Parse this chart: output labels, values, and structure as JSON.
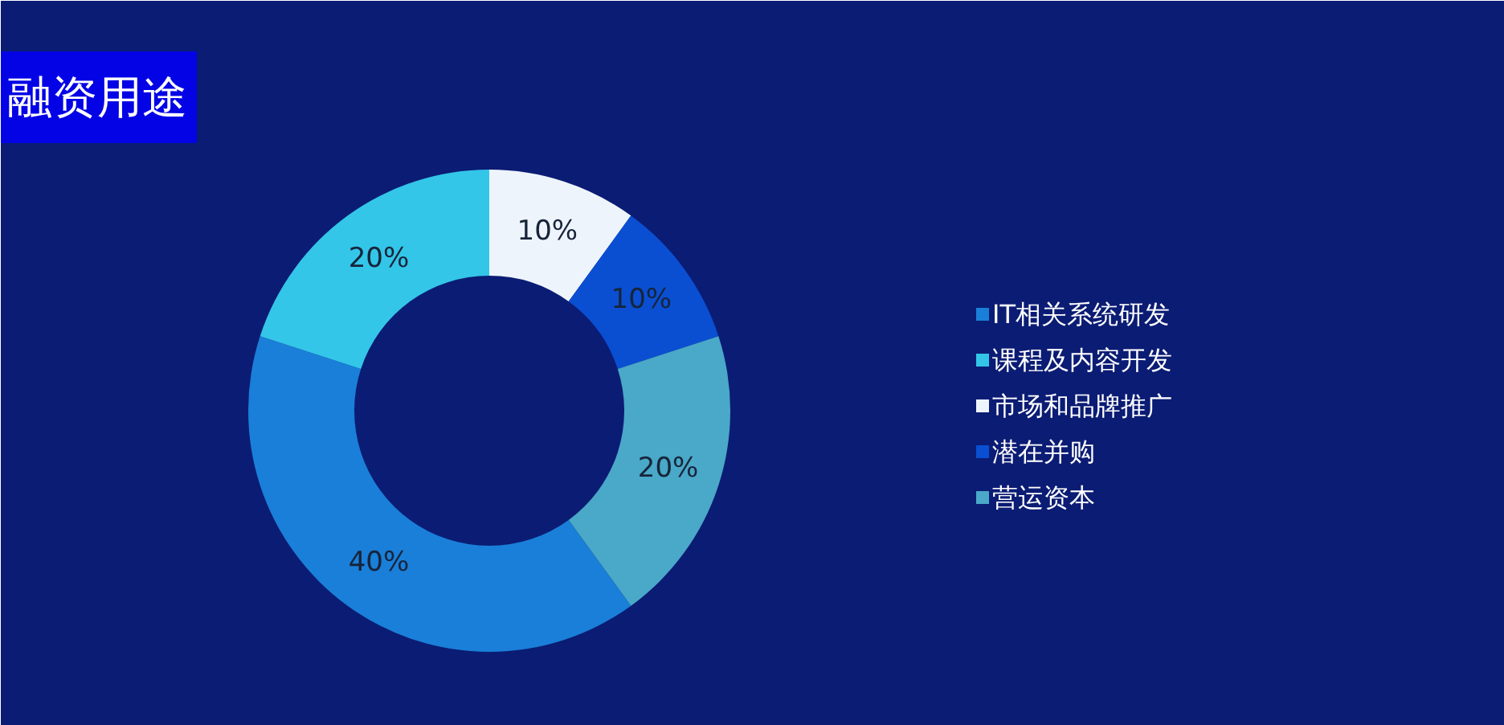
{
  "chart_data": {
    "type": "donut",
    "title": "融资用途",
    "categories": [
      "IT相关系统研发",
      "课程及内容开发",
      "市场和品牌推广",
      "潜在并购",
      "营运资本"
    ],
    "values": [
      40,
      20,
      10,
      10,
      20
    ],
    "colors": [
      "#1a7fd8",
      "#33c6e8",
      "#eef4fb",
      "#0a4fd2",
      "#4aa8c8"
    ],
    "value_labels": [
      "40%",
      "20%",
      "10%",
      "10%",
      "20%"
    ],
    "legend": "right"
  }
}
